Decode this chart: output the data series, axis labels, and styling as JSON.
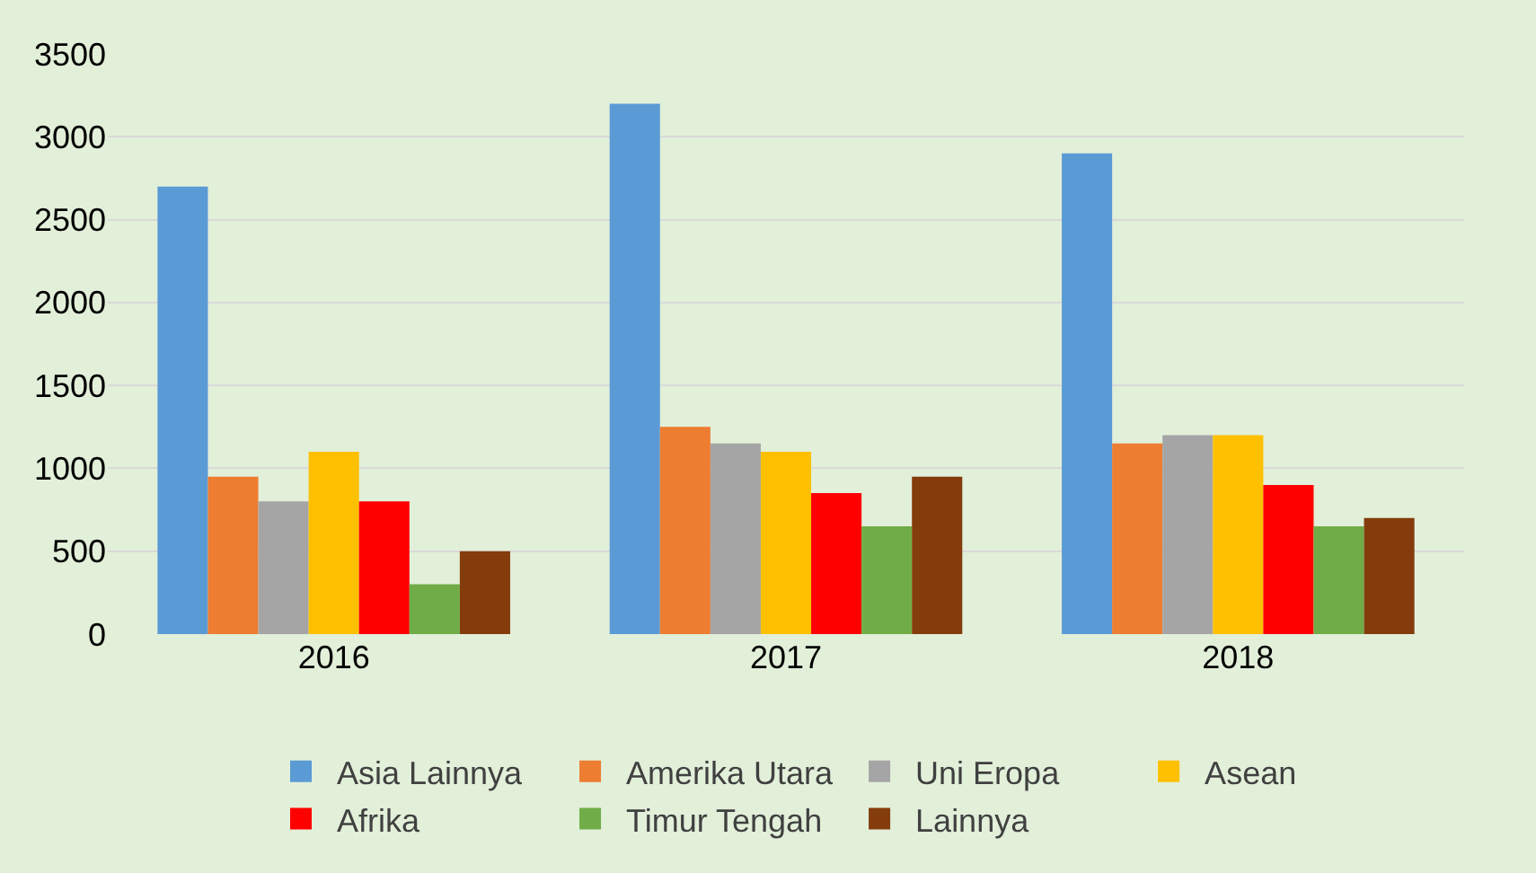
{
  "chart_data": {
    "type": "bar",
    "categories": [
      "2016",
      "2017",
      "2018"
    ],
    "series": [
      {
        "name": "Asia Lainnya",
        "color": "#5b9bd5",
        "values": [
          2700,
          3200,
          2900
        ]
      },
      {
        "name": "Amerika Utara",
        "color": "#ed7d31",
        "values": [
          950,
          1250,
          1150
        ]
      },
      {
        "name": "Uni Eropa",
        "color": "#a5a5a5",
        "values": [
          800,
          1150,
          1200
        ]
      },
      {
        "name": "Asean",
        "color": "#ffc000",
        "values": [
          1100,
          1100,
          1200
        ]
      },
      {
        "name": "Afrika",
        "color": "#ff0000",
        "values": [
          800,
          850,
          900
        ]
      },
      {
        "name": "Timur Tengah",
        "color": "#70ad47",
        "values": [
          300,
          650,
          650
        ]
      },
      {
        "name": "Lainnya",
        "color": "#843c0c",
        "values": [
          500,
          950,
          700
        ]
      }
    ],
    "ylim": [
      0,
      3500
    ],
    "yticks": [
      0,
      500,
      1000,
      1500,
      2000,
      2500,
      3000,
      3500
    ],
    "grid": "y",
    "legend": "bottom"
  }
}
